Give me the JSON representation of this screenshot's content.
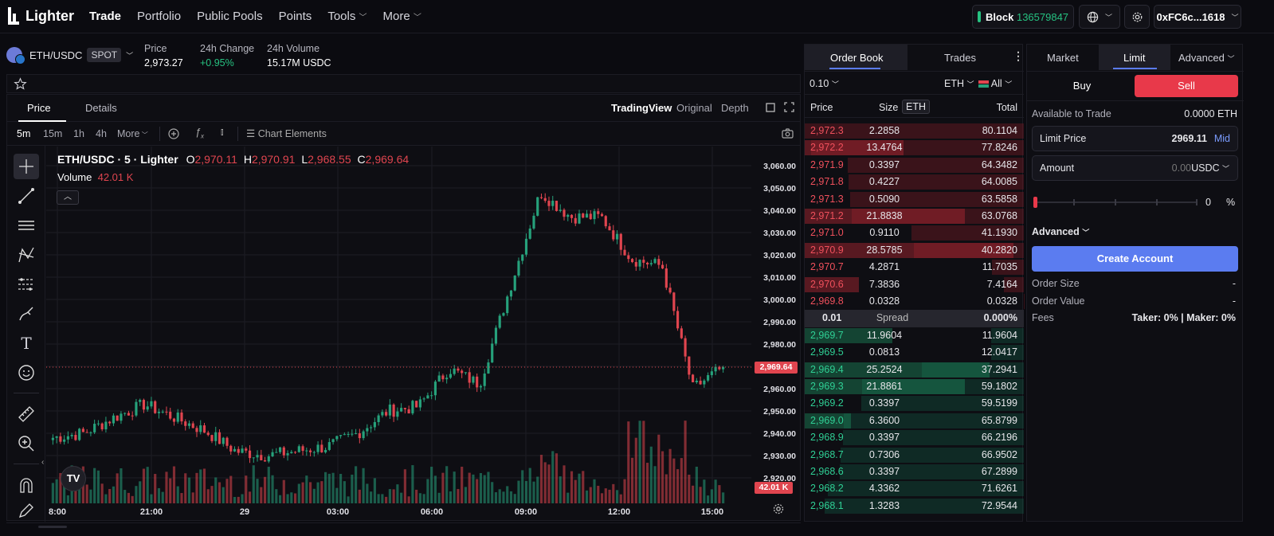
{
  "nav": {
    "brand": "Lighter",
    "links": [
      "Trade",
      "Portfolio",
      "Public Pools",
      "Points",
      "Tools",
      "More"
    ],
    "block_label": "Block",
    "block_number": "136579847",
    "wallet": "0xFC6c...1618"
  },
  "market": {
    "pair": "ETH/USDC",
    "badge": "SPOT",
    "price_label": "Price",
    "price": "2,973.27",
    "change_label": "24h Change",
    "change": "+0.95%",
    "volume_label": "24h Volume",
    "volume": "15.17M USDC"
  },
  "chart_panel": {
    "tabs": [
      "Price",
      "Details"
    ],
    "views": [
      "TradingView",
      "Original",
      "Depth"
    ],
    "intervals": [
      "5m",
      "15m",
      "1h",
      "4h",
      "More"
    ],
    "chart_elements": "Chart Elements",
    "title": "ETH/USDC · 5 · Lighter",
    "ohlc": {
      "o_label": "O",
      "o": "2,970.11",
      "h_label": "H",
      "h": "2,970.91",
      "l_label": "L",
      "l": "2,968.55",
      "c_label": "C",
      "c": "2,969.64"
    },
    "volume_label": "Volume",
    "volume_value": "42.01 K",
    "last_price_tag": "2,969.64",
    "volume_tag": "42.01 K"
  },
  "chart_data": {
    "type": "line",
    "title": "ETH/USDC · 5 · Lighter",
    "xlabel": "",
    "ylabel": "",
    "x_ticks": [
      "8:00",
      "21:00",
      "29",
      "03:00",
      "06:00",
      "09:00",
      "12:00",
      "15:00"
    ],
    "y_ticks": [
      "3,060.00",
      "3,050.00",
      "3,040.00",
      "3,030.00",
      "3,020.00",
      "3,010.00",
      "3,000.00",
      "2,990.00",
      "2,980.00",
      "2,970.00",
      "2,960.00",
      "2,950.00",
      "2,940.00",
      "2,930.00",
      "2,920.00"
    ],
    "ylim": [
      2916,
      3064
    ],
    "grid": true,
    "series": [
      {
        "x": [
          "18:00",
          "19:00",
          "20:00",
          "21:00",
          "22:00",
          "23:00",
          "29 00:00",
          "01:00",
          "02:00",
          "03:00",
          "04:00",
          "05:00",
          "06:00",
          "07:00",
          "08:00",
          "09:00",
          "10:00",
          "11:00",
          "12:00",
          "13:00",
          "14:00",
          "15:00",
          "15:10"
        ],
        "values": [
          2938,
          2940,
          2947,
          2953,
          2947,
          2941,
          2932,
          2930,
          2932,
          2934,
          2940,
          2950,
          2952,
          2969,
          2962,
          3005,
          3048,
          3037,
          3037,
          3018,
          3015,
          2960,
          2969.64
        ]
      }
    ],
    "volume": {
      "last": "42.01 K"
    }
  },
  "orderbook": {
    "tabs": [
      "Order Book",
      "Trades"
    ],
    "tick": "0.10",
    "unit": "ETH",
    "filter": "All",
    "headers": {
      "price": "Price",
      "size": "Size",
      "size_unit": "ETH",
      "total": "Total"
    },
    "asks": [
      {
        "price": "2,972.3",
        "size": "2.2858",
        "total": "80.1104"
      },
      {
        "price": "2,972.2",
        "size": "13.4764",
        "total": "77.8246"
      },
      {
        "price": "2,971.9",
        "size": "0.3397",
        "total": "64.3482"
      },
      {
        "price": "2,971.8",
        "size": "0.4227",
        "total": "64.0085"
      },
      {
        "price": "2,971.3",
        "size": "0.5090",
        "total": "63.5858"
      },
      {
        "price": "2,971.2",
        "size": "21.8838",
        "total": "63.0768"
      },
      {
        "price": "2,971.0",
        "size": "0.9110",
        "total": "41.1930"
      },
      {
        "price": "2,970.9",
        "size": "28.5785",
        "total": "40.2820"
      },
      {
        "price": "2,970.7",
        "size": "4.2871",
        "total": "11.7035"
      },
      {
        "price": "2,970.6",
        "size": "7.3836",
        "total": "7.4164"
      },
      {
        "price": "2,969.8",
        "size": "0.0328",
        "total": "0.0328"
      }
    ],
    "spread": {
      "value": "0.01",
      "label": "Spread",
      "pct": "0.000%"
    },
    "bids": [
      {
        "price": "2,969.7",
        "size": "11.9604",
        "total": "11.9604"
      },
      {
        "price": "2,969.5",
        "size": "0.0813",
        "total": "12.0417"
      },
      {
        "price": "2,969.4",
        "size": "25.2524",
        "total": "37.2941"
      },
      {
        "price": "2,969.3",
        "size": "21.8861",
        "total": "59.1802"
      },
      {
        "price": "2,969.2",
        "size": "0.3397",
        "total": "59.5199"
      },
      {
        "price": "2,969.0",
        "size": "6.3600",
        "total": "65.8799"
      },
      {
        "price": "2,968.9",
        "size": "0.3397",
        "total": "66.2196"
      },
      {
        "price": "2,968.7",
        "size": "0.7306",
        "total": "66.9502"
      },
      {
        "price": "2,968.6",
        "size": "0.3397",
        "total": "67.2899"
      },
      {
        "price": "2,968.2",
        "size": "4.3362",
        "total": "71.6261"
      },
      {
        "price": "2,968.1",
        "size": "1.3283",
        "total": "72.9544"
      }
    ]
  },
  "order_form": {
    "tabs": [
      "Market",
      "Limit",
      "Advanced"
    ],
    "buy": "Buy",
    "sell": "Sell",
    "available_label": "Available to Trade",
    "available_value": "0.0000 ETH",
    "limit_price_label": "Limit Price",
    "limit_price_value": "2969.11",
    "mid": "Mid",
    "amount_label": "Amount",
    "amount_value": "0.00",
    "amount_unit": "USDC",
    "slider_pct": "0",
    "pct_sign": "%",
    "advanced": "Advanced",
    "create_account": "Create Account",
    "order_size_label": "Order Size",
    "order_size_value": "-",
    "order_value_label": "Order Value",
    "order_value_value": "-",
    "fees_label": "Fees",
    "fees_value": "Taker: 0% | Maker: 0%"
  },
  "colors": {
    "green": "#26a17b",
    "red": "#e0454f",
    "accent": "#5b7cf0"
  }
}
